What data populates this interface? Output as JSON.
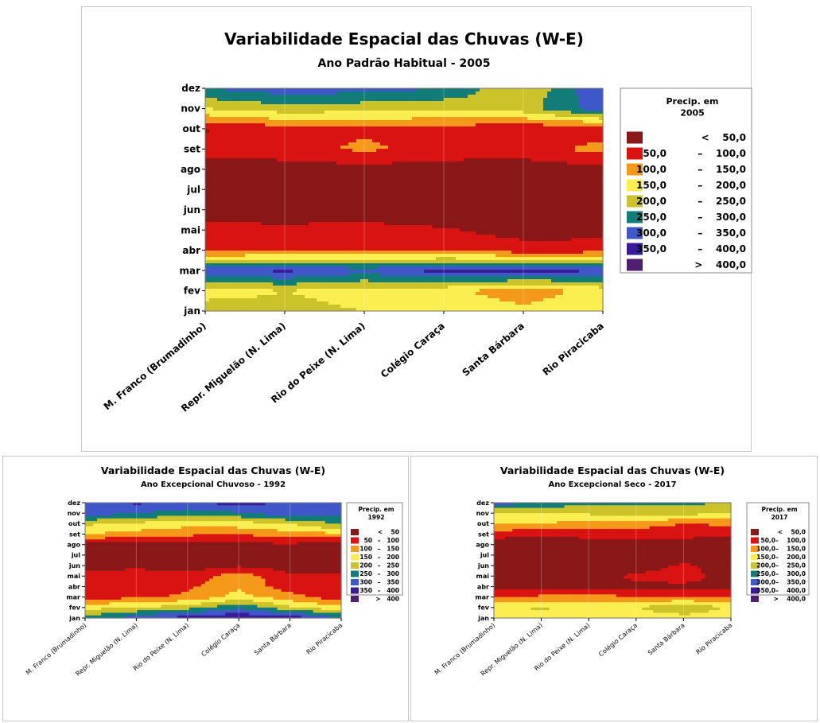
{
  "palette": {
    "lt50": "#8B1818",
    "50_100": "#D91212",
    "100_150": "#F4991A",
    "150_200": "#FAEE50",
    "200_250": "#CCC22A",
    "250_300": "#117C78",
    "300_350": "#3F57C8",
    "350_400": "#3A1C9A",
    "gt400": "#521E70"
  },
  "chart_data": [
    {
      "type": "heatmap",
      "title": "Variabilidade Espacial das Chuvas (W-E)",
      "subtitle": "Ano Padrão Habitual - 2005",
      "x_categories": [
        "M. Franco (Brumadinho)",
        "Repr. Miguelão (N. Lima)",
        "Rio do Peixe (N. Lima)",
        "Colégio Caraça",
        "Santa Bárbara",
        "Rio Piracicaba"
      ],
      "y_categories": [
        "jan",
        "fev",
        "mar",
        "abr",
        "mai",
        "jun",
        "jul",
        "ago",
        "set",
        "out",
        "nov",
        "dez"
      ],
      "legend_title": "Precip. em 2005",
      "legend_title_lines": [
        "Precip. em",
        "2005"
      ],
      "legend": [
        {
          "label": "< 50,0",
          "left": "",
          "right": "<    50,0",
          "color_key": "lt50"
        },
        {
          "label": "50,0 – 100,0",
          "left": "50,0",
          "right": "–    100,0",
          "color_key": "50_100"
        },
        {
          "label": "100,0 – 150,0",
          "left": "100,0",
          "right": "–    150,0",
          "color_key": "100_150"
        },
        {
          "label": "150,0 – 200,0",
          "left": "150,0",
          "right": "–    200,0",
          "color_key": "150_200"
        },
        {
          "label": "200,0 – 250,0",
          "left": "200,0",
          "right": "–    250,0",
          "color_key": "200_250"
        },
        {
          "label": "250,0 – 300,0",
          "left": "250,0",
          "right": "–    300,0",
          "color_key": "250_300"
        },
        {
          "label": "300,0 – 350,0",
          "left": "300,0",
          "right": "–    350,0",
          "color_key": "300_350"
        },
        {
          "label": "350,0 – 400,0",
          "left": "350,0",
          "right": "–    400,0",
          "color_key": "350_400"
        },
        {
          "label": "> 400,0",
          "left": "",
          "right": ">    400,0",
          "color_key": "gt400"
        }
      ],
      "values_mm": [
        [
          230,
          215,
          200,
          180,
          165,
          190
        ],
        [
          175,
          200,
          180,
          165,
          120,
          170
        ],
        [
          330,
          360,
          320,
          370,
          375,
          350
        ],
        [
          80,
          90,
          100,
          85,
          70,
          75
        ],
        [
          70,
          65,
          70,
          55,
          30,
          30
        ],
        [
          15,
          15,
          15,
          15,
          15,
          10
        ],
        [
          10,
          10,
          10,
          10,
          10,
          10
        ],
        [
          25,
          25,
          30,
          25,
          25,
          30
        ],
        [
          70,
          80,
          110,
          80,
          75,
          120
        ],
        [
          45,
          80,
          90,
          80,
          60,
          70
        ],
        [
          200,
          230,
          220,
          210,
          230,
          330
        ],
        [
          300,
          330,
          320,
          300,
          200,
          350
        ]
      ]
    },
    {
      "type": "heatmap",
      "title": "Variabilidade Espacial das Chuvas (W-E)",
      "subtitle": "Ano Excepcional Chuvoso - 1992",
      "x_categories": [
        "M. Franco (Brumadinho)",
        "Repr. Miguelão (N. Lima)",
        "Rio do Peixe (N. Lima)",
        "Colégio Caraça",
        "Santa Bárbara",
        "Rio Piracicaba"
      ],
      "y_categories": [
        "jan",
        "fev",
        "mar",
        "abr",
        "mai",
        "jun",
        "jul",
        "ago",
        "set",
        "out",
        "nov",
        "dez"
      ],
      "legend_title": "Precip. em 1992",
      "legend_title_lines": [
        "Precip. em",
        "1992"
      ],
      "legend": [
        {
          "label": "< 50",
          "left": "",
          "right": "<    50",
          "color_key": "lt50"
        },
        {
          "label": "50 – 100",
          "left": "50",
          "right": "–   100",
          "color_key": "50_100"
        },
        {
          "label": "100 – 150",
          "left": "100",
          "right": "–   150",
          "color_key": "100_150"
        },
        {
          "label": "150 – 200",
          "left": "150",
          "right": "–   200",
          "color_key": "150_200"
        },
        {
          "label": "200 – 250",
          "left": "200",
          "right": "–   250",
          "color_key": "200_250"
        },
        {
          "label": "250 – 300",
          "left": "250",
          "right": "–   300",
          "color_key": "250_300"
        },
        {
          "label": "300 – 350",
          "left": "300",
          "right": "–   350",
          "color_key": "300_350"
        },
        {
          "label": "350 – 400",
          "left": "350",
          "right": "–   400",
          "color_key": "350_400"
        },
        {
          "label": "> 400",
          "left": "",
          "right": ">   400",
          "color_key": "gt400"
        }
      ],
      "values_mm": [
        [
          270,
          330,
          380,
          400,
          390,
          300
        ],
        [
          180,
          200,
          230,
          290,
          210,
          160
        ],
        [
          80,
          90,
          110,
          170,
          120,
          70
        ],
        [
          70,
          60,
          90,
          140,
          70,
          60
        ],
        [
          70,
          90,
          70,
          130,
          60,
          55
        ],
        [
          20,
          30,
          20,
          40,
          25,
          20
        ],
        [
          10,
          10,
          10,
          10,
          10,
          10
        ],
        [
          30,
          30,
          40,
          40,
          40,
          30
        ],
        [
          150,
          130,
          110,
          100,
          130,
          140
        ],
        [
          210,
          190,
          170,
          180,
          200,
          260
        ],
        [
          330,
          300,
          280,
          290,
          340,
          310
        ],
        [
          310,
          360,
          330,
          380,
          330,
          300
        ]
      ]
    },
    {
      "type": "heatmap",
      "title": "Variabilidade Espacial das Chuvas (W-E)",
      "subtitle": "Ano Excepcional Seco - 2017",
      "x_categories": [
        "M. Franco (Brumadinho)",
        "Repr. Miguelão (N. Lima)",
        "Rio do Peixe (N. Lima)",
        "Colégio Caraça",
        "Santa Bárbara",
        "Rio Piracicaba"
      ],
      "y_categories": [
        "jan",
        "fev",
        "mar",
        "abr",
        "mai",
        "jun",
        "jul",
        "ago",
        "set",
        "out",
        "nov",
        "dez"
      ],
      "legend_title": "Precip. em 2017",
      "legend_title_lines": [
        "Precip. em",
        "2017"
      ],
      "legend": [
        {
          "label": "< 50,0",
          "left": "",
          "right": "<    50,0",
          "color_key": "lt50"
        },
        {
          "label": "50,0 – 100,0",
          "left": "50,0",
          "right": "–    100,0",
          "color_key": "50_100"
        },
        {
          "label": "100,0 – 150,0",
          "left": "100,0",
          "right": "–    150,0",
          "color_key": "100_150"
        },
        {
          "label": "150,0 – 200,0",
          "left": "150,0",
          "right": "–    200,0",
          "color_key": "150_200"
        },
        {
          "label": "200,0 – 250,0",
          "left": "200,0",
          "right": "–    250,0",
          "color_key": "200_250"
        },
        {
          "label": "250,0 – 300,0",
          "left": "250,0",
          "right": "–    300,0",
          "color_key": "250_300"
        },
        {
          "label": "300,0 – 350,0",
          "left": "300,0",
          "right": "–    350,0",
          "color_key": "300_350"
        },
        {
          "label": "350,0 – 400,0",
          "left": "350,0",
          "right": "–    400,0",
          "color_key": "350_400"
        },
        {
          "label": "> 400,0",
          "left": "",
          "right": ">    400,0",
          "color_key": "gt400"
        }
      ],
      "values_mm": [
        [
          170,
          160,
          150,
          160,
          170,
          160
        ],
        [
          190,
          210,
          180,
          200,
          260,
          190
        ],
        [
          90,
          110,
          120,
          100,
          90,
          100
        ],
        [
          40,
          40,
          40,
          40,
          40,
          40
        ],
        [
          20,
          20,
          25,
          60,
          70,
          30
        ],
        [
          15,
          15,
          15,
          20,
          60,
          20
        ],
        [
          10,
          10,
          10,
          10,
          10,
          10
        ],
        [
          20,
          20,
          20,
          20,
          20,
          20
        ],
        [
          70,
          60,
          70,
          80,
          70,
          60
        ],
        [
          160,
          150,
          130,
          120,
          100,
          110
        ],
        [
          200,
          190,
          210,
          230,
          220,
          200
        ],
        [
          330,
          290,
          270,
          260,
          260,
          250
        ]
      ]
    }
  ]
}
